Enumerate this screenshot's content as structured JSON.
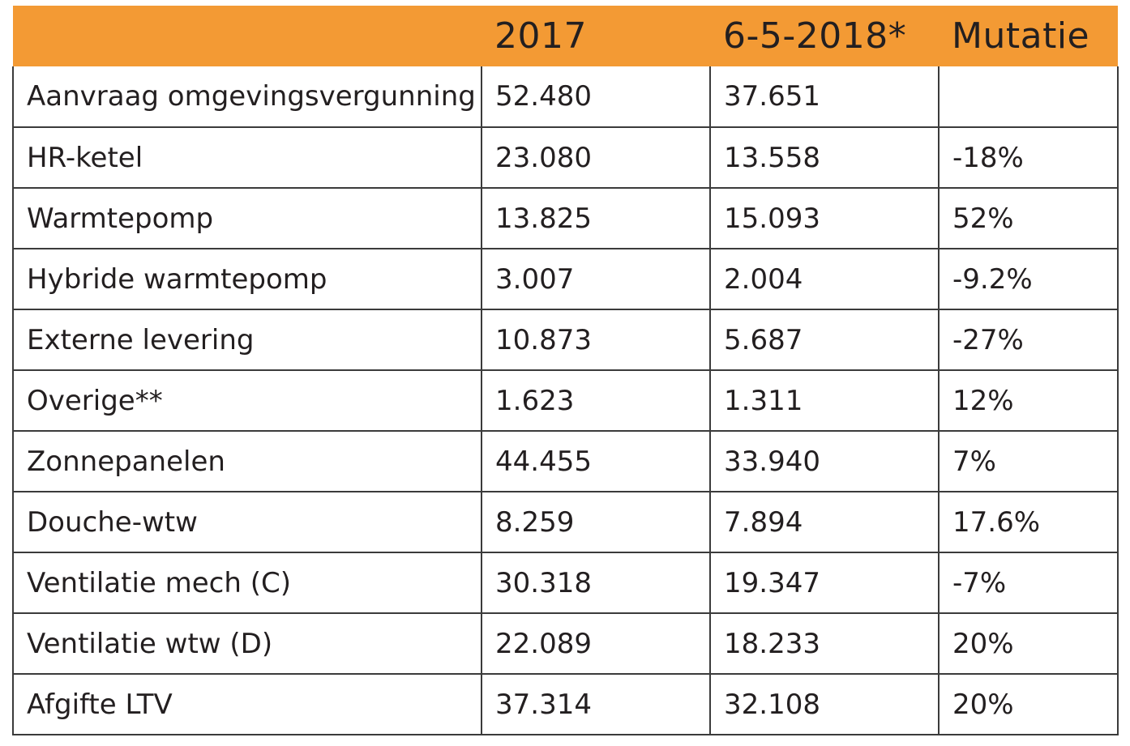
{
  "table": {
    "header": {
      "label": "",
      "col_2017": "2017",
      "col_2018": "6-5-2018*",
      "col_mutatie": "Mutatie"
    },
    "header_color": "#f39a34",
    "rows": [
      {
        "label": "Aanvraag omgevingsvergunning",
        "v2017": "52.480",
        "v2018": "37.651",
        "mutatie": ""
      },
      {
        "label": "HR-ketel",
        "v2017": "23.080",
        "v2018": "13.558",
        "mutatie": "-18%"
      },
      {
        "label": "Warmtepomp",
        "v2017": "13.825",
        "v2018": "15.093",
        "mutatie": "52%"
      },
      {
        "label": "Hybride warmtepomp",
        "v2017": "3.007",
        "v2018": "2.004",
        "mutatie": "-9.2%"
      },
      {
        "label": "Externe levering",
        "v2017": "10.873",
        "v2018": "5.687",
        "mutatie": "-27%"
      },
      {
        "label": "Overige**",
        "v2017": "1.623",
        "v2018": "1.311",
        "mutatie": "12%"
      },
      {
        "label": "Zonnepanelen",
        "v2017": "44.455",
        "v2018": "33.940",
        "mutatie": "7%"
      },
      {
        "label": "Douche-wtw",
        "v2017": "8.259",
        "v2018": "7.894",
        "mutatie": "17.6%"
      },
      {
        "label": "Ventilatie mech (C)",
        "v2017": "30.318",
        "v2018": "19.347",
        "mutatie": "-7%"
      },
      {
        "label": "Ventilatie wtw (D)",
        "v2017": "22.089",
        "v2018": "18.233",
        "mutatie": "20%"
      },
      {
        "label": "Afgifte LTV",
        "v2017": "37.314",
        "v2018": "32.108",
        "mutatie": "20%"
      }
    ]
  }
}
